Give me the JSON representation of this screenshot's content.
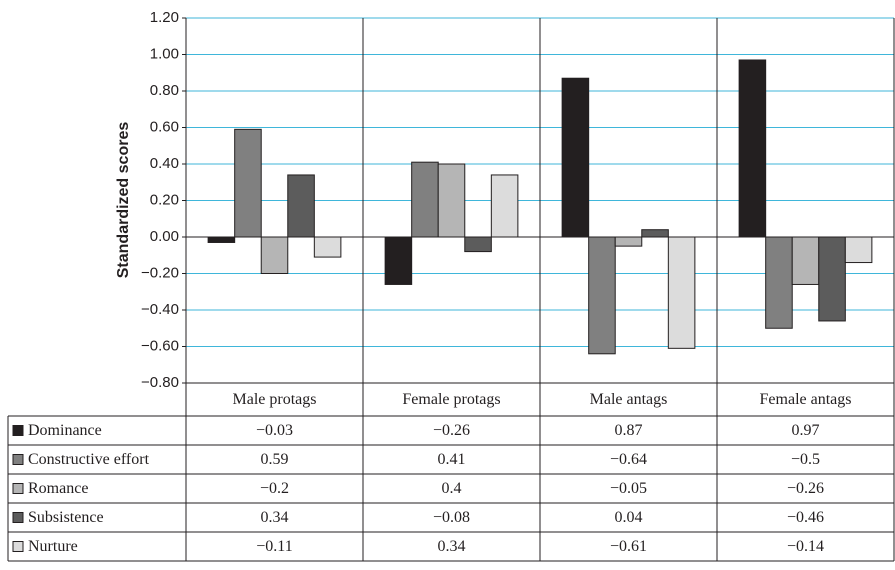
{
  "chart_data": {
    "type": "bar",
    "y_axis_label": "Standardized scores",
    "categories": [
      "Male protags",
      "Female protags",
      "Male antags",
      "Female antags"
    ],
    "series": [
      {
        "name": "Dominance",
        "color": "#231f20",
        "values": [
          -0.03,
          -0.26,
          0.87,
          0.97
        ],
        "value_labels": [
          "−0.03",
          "−0.26",
          "0.87",
          "0.97"
        ]
      },
      {
        "name": "Constructive effort",
        "color": "#808080",
        "values": [
          0.59,
          0.41,
          -0.64,
          -0.5
        ],
        "value_labels": [
          "0.59",
          "0.41",
          "−0.64",
          "−0.5"
        ]
      },
      {
        "name": "Romance",
        "color": "#b5b5b5",
        "values": [
          -0.2,
          0.4,
          -0.05,
          -0.26
        ],
        "value_labels": [
          "−0.2",
          "0.4",
          "−0.05",
          "−0.26"
        ]
      },
      {
        "name": "Subsistence",
        "color": "#5c5c5c",
        "values": [
          0.34,
          -0.08,
          0.04,
          -0.46
        ],
        "value_labels": [
          "0.34",
          "−0.08",
          "0.04",
          "−0.46"
        ]
      },
      {
        "name": "Nurture",
        "color": "#dcdcdc",
        "values": [
          -0.11,
          0.34,
          -0.61,
          -0.14
        ],
        "value_labels": [
          "−0.11",
          "0.34",
          "−0.61",
          "−0.14"
        ]
      }
    ],
    "ylim": [
      -0.8,
      1.2
    ],
    "yticks": [
      {
        "value": 1.2,
        "label": "1.20"
      },
      {
        "value": 1.0,
        "label": "1.00"
      },
      {
        "value": 0.8,
        "label": "0.80"
      },
      {
        "value": 0.6,
        "label": "0.60"
      },
      {
        "value": 0.4,
        "label": "0.40"
      },
      {
        "value": 0.2,
        "label": "0.20"
      },
      {
        "value": 0.0,
        "label": "0.00"
      },
      {
        "value": -0.2,
        "label": "−0.20"
      },
      {
        "value": -0.4,
        "label": "−0.40"
      },
      {
        "value": -0.6,
        "label": "−0.60"
      },
      {
        "value": -0.8,
        "label": "−0.80"
      }
    ],
    "grid": true
  }
}
